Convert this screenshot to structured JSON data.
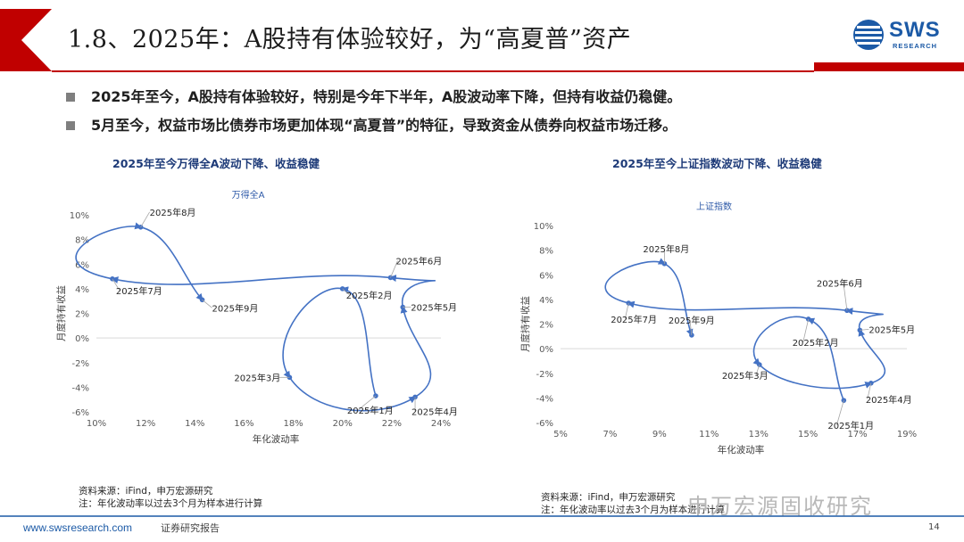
{
  "header": {
    "title": "1.8、2025年：A股持有体验较好，为“高夏普”资产"
  },
  "logo": {
    "text": "SWS",
    "sub": "RESEARCH"
  },
  "bullets": [
    "2025年至今，A股持有体验较好，特别是今年下半年，A股波动率下降，但持有收益仍稳健。",
    "5月至今，权益市场比债券市场更加体现“高夏普”的特征，导致资金从债券向权益市场迁移。"
  ],
  "colors": {
    "accent": "#c00000",
    "series": "#4472c4",
    "brand": "#1c5aa6"
  },
  "chart_data": [
    {
      "type": "scatter",
      "title": "2025年至今万得全A波动下降、收益稳健",
      "series_label": "万得全A",
      "xlabel": "年化波动率",
      "ylabel": "月度持有收益",
      "xlim": [
        0.1,
        0.24
      ],
      "ylim": [
        -0.06,
        0.1
      ],
      "xticks": [
        "10%",
        "12%",
        "14%",
        "16%",
        "18%",
        "20%",
        "22%",
        "24%"
      ],
      "yticks": [
        "-6%",
        "-4%",
        "-2%",
        "0%",
        "2%",
        "4%",
        "6%",
        "8%",
        "10%"
      ],
      "grid": false,
      "points": [
        {
          "label": "2025年1月",
          "x": 0.2135,
          "y": -0.047
        },
        {
          "label": "2025年2月",
          "x": 0.2,
          "y": 0.04
        },
        {
          "label": "2025年3月",
          "x": 0.1785,
          "y": -0.032
        },
        {
          "label": "2025年4月",
          "x": 0.2295,
          "y": -0.048
        },
        {
          "label": "2025年5月",
          "x": 0.2245,
          "y": 0.025
        },
        {
          "label": "2025年6月",
          "x": 0.2195,
          "y": 0.049
        },
        {
          "label": "2025年7月",
          "x": 0.1065,
          "y": 0.048
        },
        {
          "label": "2025年8月",
          "x": 0.118,
          "y": 0.09
        },
        {
          "label": "2025年9月",
          "x": 0.143,
          "y": 0.031
        }
      ]
    },
    {
      "type": "scatter",
      "title": "2025年至今上证指数波动下降、收益稳健",
      "series_label": "上证指数",
      "xlabel": "年化波动率",
      "ylabel": "月度持有收益",
      "xlim": [
        0.05,
        0.19
      ],
      "ylim": [
        -0.06,
        0.1
      ],
      "xticks": [
        "5%",
        "7%",
        "9%",
        "11%",
        "13%",
        "15%",
        "17%",
        "19%"
      ],
      "yticks": [
        "-6%",
        "-4%",
        "-2%",
        "0%",
        "2%",
        "4%",
        "6%",
        "8%",
        "10%"
      ],
      "grid": false,
      "points": [
        {
          "label": "2025年1月",
          "x": 0.1645,
          "y": -0.042
        },
        {
          "label": "2025年2月",
          "x": 0.1502,
          "y": 0.024
        },
        {
          "label": "2025年3月",
          "x": 0.1304,
          "y": -0.013
        },
        {
          "label": "2025年4月",
          "x": 0.1755,
          "y": -0.028
        },
        {
          "label": "2025年5月",
          "x": 0.171,
          "y": 0.015
        },
        {
          "label": "2025年6月",
          "x": 0.1658,
          "y": 0.031
        },
        {
          "label": "2025年7月",
          "x": 0.0775,
          "y": 0.037
        },
        {
          "label": "2025年8月",
          "x": 0.092,
          "y": 0.069
        },
        {
          "label": "2025年9月",
          "x": 0.103,
          "y": 0.011
        }
      ]
    }
  ],
  "sources": {
    "left": [
      "资料来源：iFind，申万宏源研究",
      "注：年化波动率以过去3个月为样本进行计算"
    ],
    "right": [
      "资料来源：iFind，申万宏源研究",
      "注：年化波动率以过去3个月为样本进行计算"
    ]
  },
  "watermark": "申万宏源固收研究",
  "footer": {
    "url": "www.swsresearch.com",
    "report": "证券研究报告",
    "page": "14"
  }
}
